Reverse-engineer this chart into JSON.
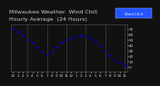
{
  "title": "Milwaukee Weather  Wind Chill",
  "subtitle": "Hourly Average  (24 Hours)",
  "hours": [
    0,
    1,
    2,
    3,
    4,
    5,
    6,
    7,
    8,
    9,
    10,
    11,
    12,
    13,
    14,
    15,
    16,
    17,
    18,
    19,
    20,
    21,
    22,
    23
  ],
  "wind_chill": [
    70,
    64,
    57,
    50,
    44,
    36,
    28,
    22,
    28,
    37,
    44,
    50,
    53,
    56,
    57,
    56,
    52,
    46,
    39,
    30,
    21,
    14,
    8,
    4
  ],
  "line_color": "#0000EE",
  "marker_size": 1.5,
  "bg_color": "#111111",
  "plot_bg_color": "#111111",
  "grid_color": "#666666",
  "grid_style": "--",
  "ylim": [
    -8,
    78
  ],
  "ytick_vals": [
    70,
    60,
    50,
    40,
    30,
    20,
    10,
    0
  ],
  "ytick_labels": [
    "70",
    "60",
    "50",
    "40",
    "30",
    "20",
    "10",
    "0"
  ],
  "legend_label": "Wind Chill",
  "legend_bg": "#2255FF",
  "title_fontsize": 4.5,
  "tick_fontsize": 3.0,
  "border_color": "#555555",
  "text_color": "#CCCCCC",
  "grid_positions": [
    3,
    7,
    11,
    15,
    19,
    23
  ]
}
